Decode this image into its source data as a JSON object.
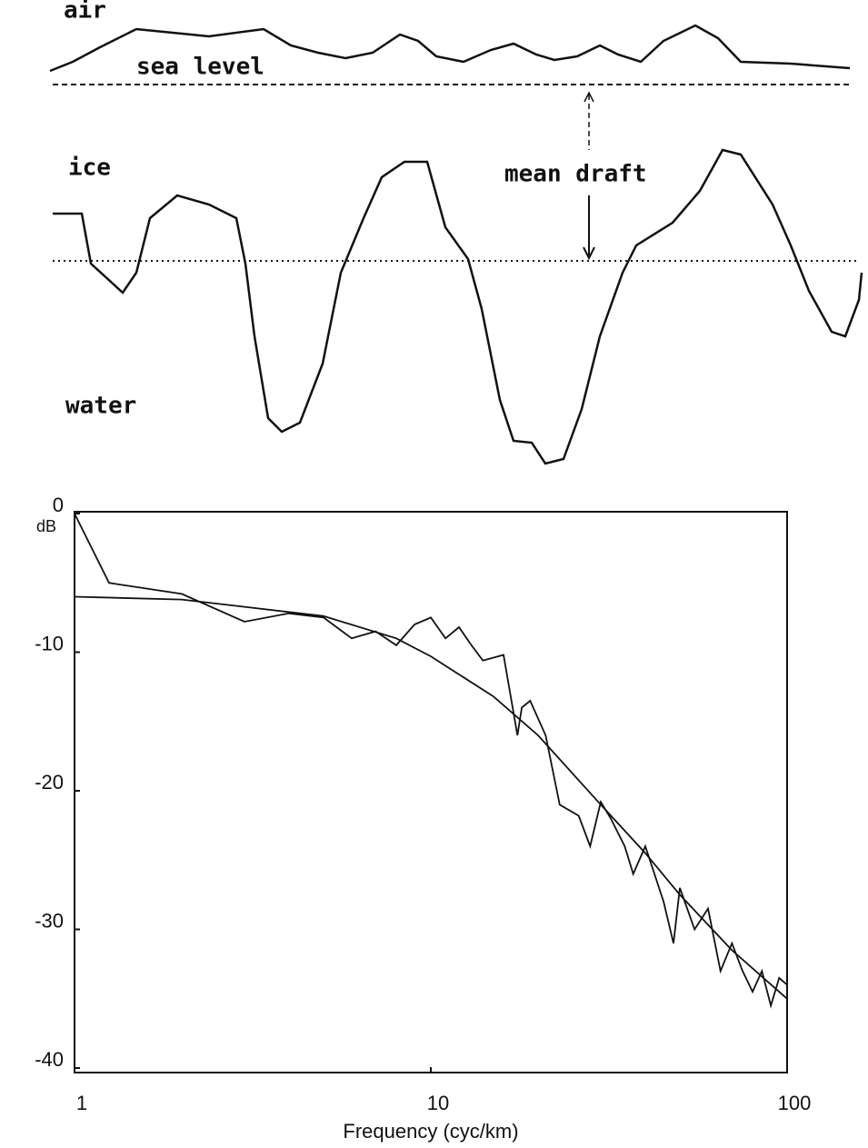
{
  "diagram": {
    "labels": {
      "air": "air",
      "sea_level": "sea level",
      "ice": "ice",
      "mean_draft": "mean draft",
      "water": "water"
    }
  },
  "chart_data": {
    "type": "line",
    "xlabel": "Frequency (cyc/km)",
    "ylabel": "dB",
    "xscale": "log",
    "xlim": [
      1,
      100
    ],
    "xticks": [
      1,
      10,
      100
    ],
    "ylim": [
      -40,
      0
    ],
    "yticks": [
      0,
      -10,
      -20,
      -30,
      -40
    ],
    "grid": false,
    "series": [
      {
        "color": "#111111",
        "x": [
          1,
          1.25,
          2,
          3,
          4,
          5,
          6,
          7,
          8,
          9,
          10,
          11,
          12,
          13,
          14,
          16,
          17.5,
          18,
          19,
          21,
          23,
          26,
          28,
          30,
          32,
          35,
          37,
          40,
          45,
          48,
          50,
          55,
          60,
          65,
          70,
          75,
          80,
          85,
          90,
          95,
          100
        ],
        "values": [
          0,
          -5,
          -5.8,
          -7.8,
          -7.2,
          -7.5,
          -9,
          -8.5,
          -9.5,
          -8,
          -7.5,
          -9,
          -8.2,
          -9.5,
          -10.6,
          -10.2,
          -16,
          -14,
          -13.5,
          -16,
          -21,
          -21.8,
          -24,
          -20.8,
          -22,
          -24,
          -26,
          -24,
          -28,
          -31,
          -27,
          -30,
          -28.5,
          -33,
          -31,
          -33,
          -34.5,
          -33,
          -35.5,
          -33.5,
          -34
        ]
      },
      {
        "color": "#111111",
        "x": [
          1,
          2,
          5,
          8,
          10,
          15,
          20,
          30,
          40,
          50,
          70,
          100
        ],
        "values": [
          -6,
          -6.2,
          -7.4,
          -9,
          -10.3,
          -13.2,
          -16,
          -21,
          -24.5,
          -27.5,
          -31.5,
          -35
        ]
      }
    ]
  }
}
